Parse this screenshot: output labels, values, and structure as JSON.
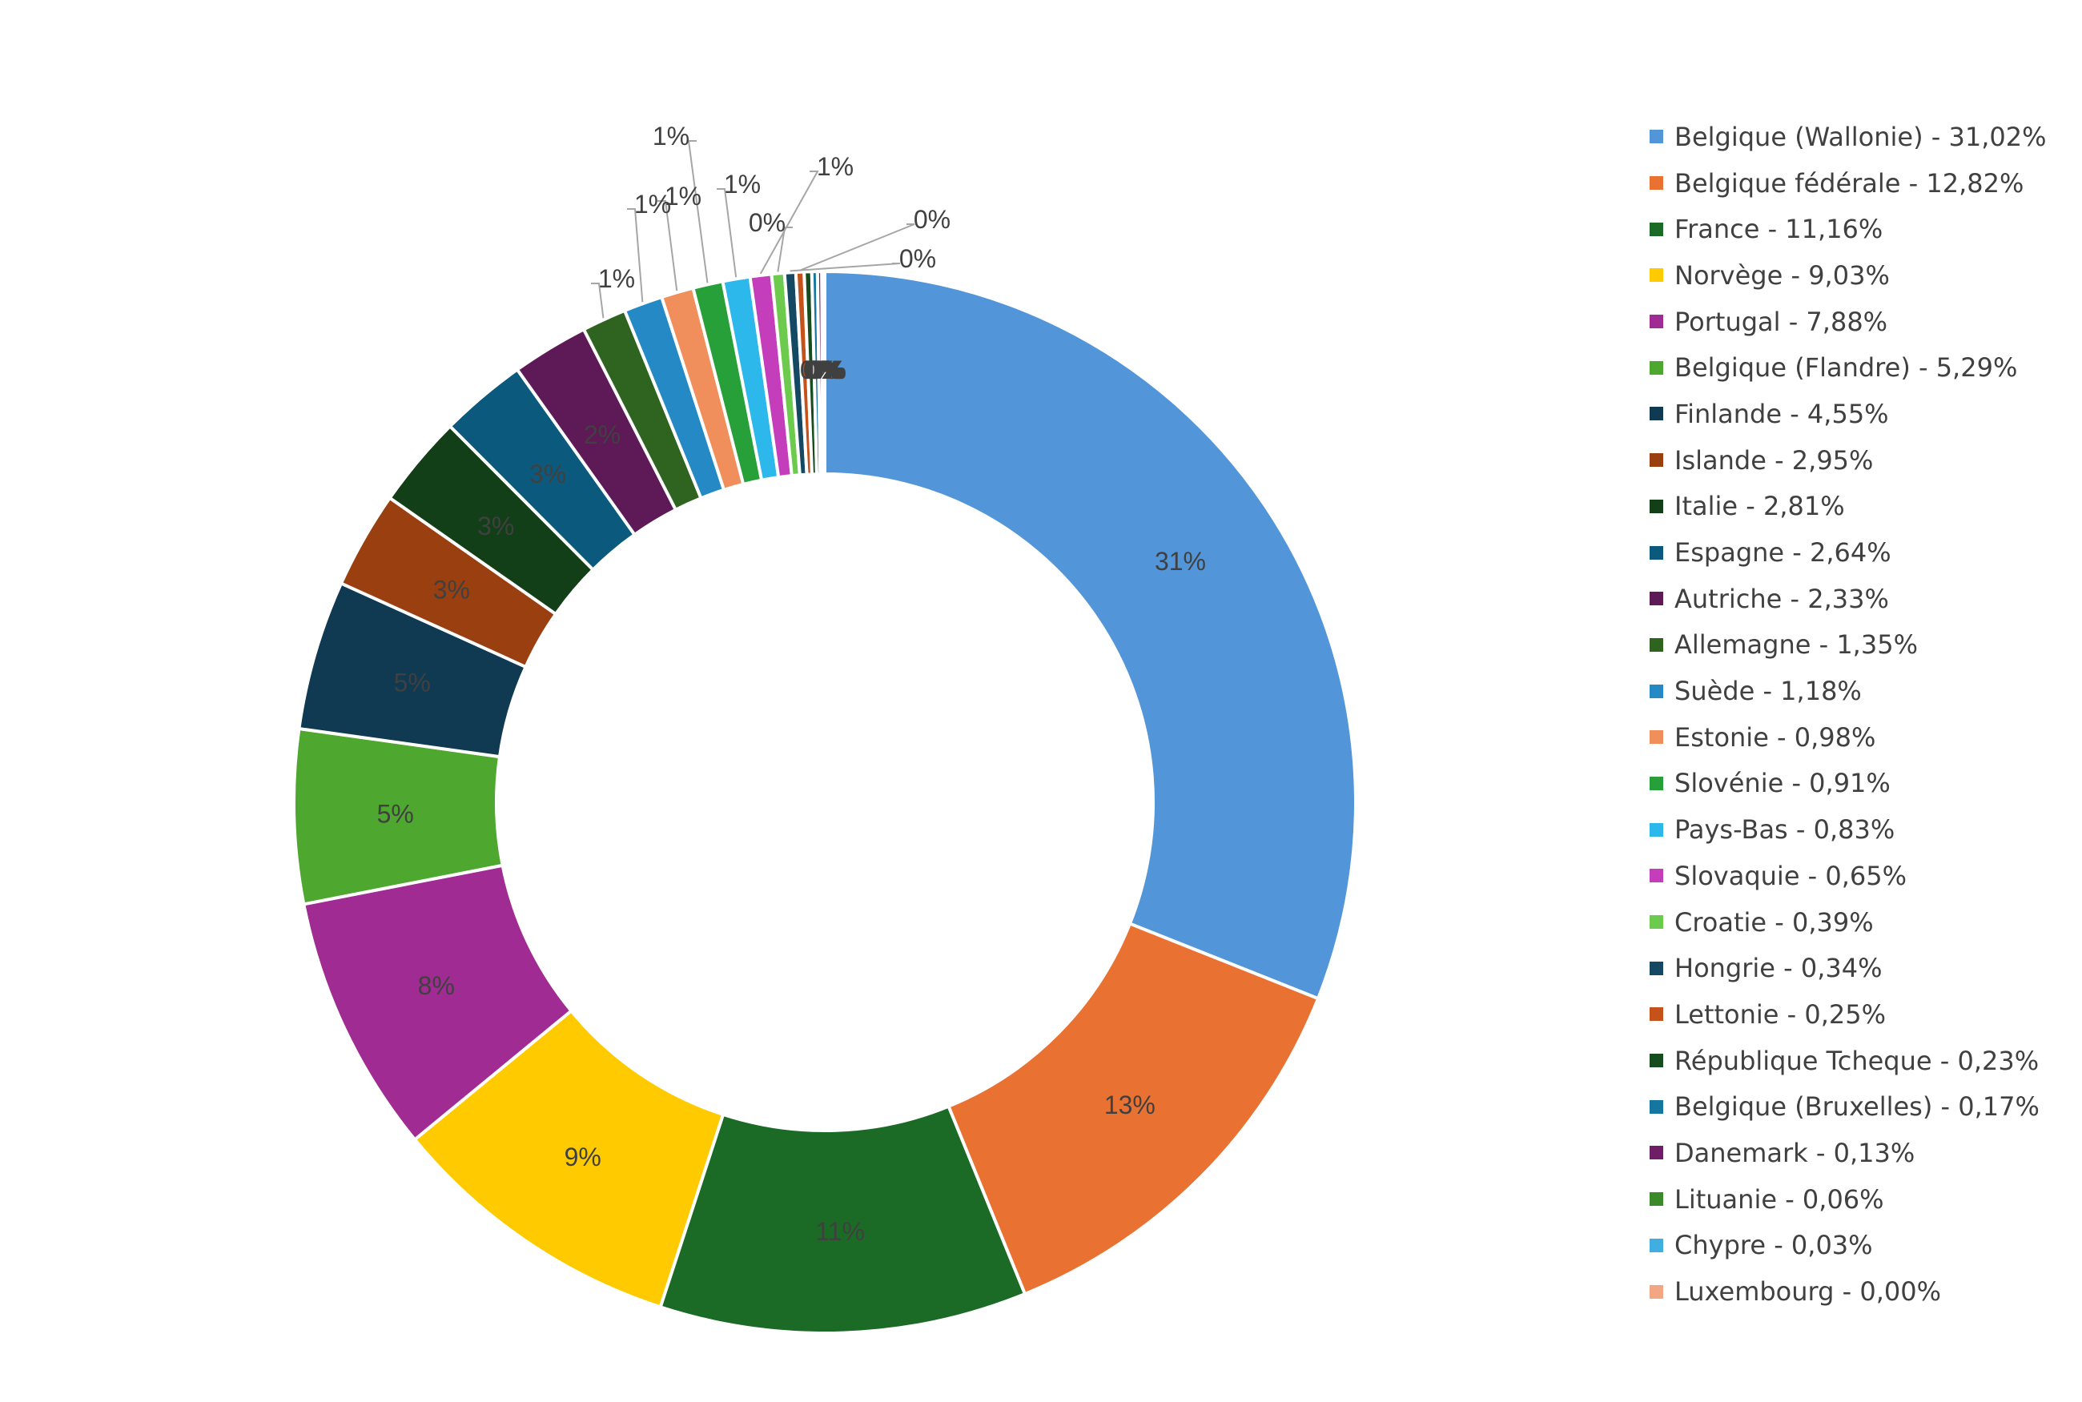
{
  "chart_data": {
    "type": "pie",
    "variant": "doughnut",
    "title": "",
    "legend_position": "right",
    "data_label_color": "#404040",
    "series": [
      {
        "name": "Belgique (Wallonie)",
        "value": 31.02,
        "legend_label": "Belgique (Wallonie) - 31,02%",
        "data_label": "31%",
        "color": "#5296D9"
      },
      {
        "name": "Belgique fédérale",
        "value": 12.82,
        "legend_label": "Belgique fédérale - 12,82%",
        "data_label": "13%",
        "color": "#E97132"
      },
      {
        "name": "France",
        "value": 11.16,
        "legend_label": "France - 11,16%",
        "data_label": "11%",
        "color": "#1B6B26"
      },
      {
        "name": "Norvège",
        "value": 9.03,
        "legend_label": "Norvège - 9,03%",
        "data_label": "9%",
        "color": "#FFCB00"
      },
      {
        "name": "Portugal",
        "value": 7.88,
        "legend_label": "Portugal - 7,88%",
        "data_label": "8%",
        "color": "#A02B93"
      },
      {
        "name": "Belgique (Flandre)",
        "value": 5.29,
        "legend_label": "Belgique (Flandre) - 5,29%",
        "data_label": "5%",
        "color": "#4EA72E"
      },
      {
        "name": "Finlande",
        "value": 4.55,
        "legend_label": "Finlande - 4,55%",
        "data_label": "5%",
        "color": "#0F3A51"
      },
      {
        "name": "Islande",
        "value": 2.95,
        "legend_label": "Islande - 2,95%",
        "data_label": "3%",
        "color": "#9A3F10"
      },
      {
        "name": "Italie",
        "value": 2.81,
        "legend_label": "Italie - 2,81%",
        "data_label": "3%",
        "color": "#123F17"
      },
      {
        "name": "Espagne",
        "value": 2.64,
        "legend_label": "Espagne - 2,64%",
        "data_label": "3%",
        "color": "#0B5A7E"
      },
      {
        "name": "Autriche",
        "value": 2.33,
        "legend_label": "Autriche - 2,33%",
        "data_label": "2%",
        "color": "#5E1A56"
      },
      {
        "name": "Allemagne",
        "value": 1.35,
        "legend_label": "Allemagne - 1,35%",
        "data_label": "1%",
        "color": "#2F6420"
      },
      {
        "name": "Suède",
        "value": 1.18,
        "legend_label": "Suède - 1,18%",
        "data_label": "1%",
        "color": "#2489C4"
      },
      {
        "name": "Estonie",
        "value": 0.98,
        "legend_label": "Estonie - 0,98%",
        "data_label": "1%",
        "color": "#F08E5C"
      },
      {
        "name": "Slovénie",
        "value": 0.91,
        "legend_label": "Slovénie - 0,91%",
        "data_label": "1%",
        "color": "#27A03A"
      },
      {
        "name": "Pays-Bas",
        "value": 0.83,
        "legend_label": "Pays-Bas - 0,83%",
        "data_label": "1%",
        "color": "#2DB8EC"
      },
      {
        "name": "Slovaquie",
        "value": 0.65,
        "legend_label": "Slovaquie - 0,65%",
        "data_label": "1%",
        "color": "#C43DBA"
      },
      {
        "name": "Croatie",
        "value": 0.39,
        "legend_label": "Croatie - 0,39%",
        "data_label": "0%",
        "color": "#6CCB4D"
      },
      {
        "name": "Hongrie",
        "value": 0.34,
        "legend_label": "Hongrie - 0,34%",
        "data_label": "0%",
        "color": "#154862"
      },
      {
        "name": "Lettonie",
        "value": 0.25,
        "legend_label": "Lettonie - 0,25%",
        "data_label": "0%",
        "color": "#C4521A"
      },
      {
        "name": "République Tcheque",
        "value": 0.23,
        "legend_label": "République Tcheque - 0,23%",
        "data_label": "0%",
        "color": "#174D1E"
      },
      {
        "name": "Belgique (Bruxelles)",
        "value": 0.17,
        "legend_label": "Belgique (Bruxelles) - 0,17%",
        "data_label": "0%",
        "color": "#15779F"
      },
      {
        "name": "Danemark",
        "value": 0.13,
        "legend_label": "Danemark - 0,13%",
        "data_label": "0%",
        "color": "#6E1E66"
      },
      {
        "name": "Lituanie",
        "value": 0.06,
        "legend_label": "Lituanie - 0,06%",
        "data_label": "0%",
        "color": "#3A8A28"
      },
      {
        "name": "Chypre",
        "value": 0.03,
        "legend_label": "Chypre - 0,03%",
        "data_label": "0%",
        "color": "#3FAEE0"
      },
      {
        "name": "Luxembourg",
        "value": 0.0,
        "legend_label": "Luxembourg - 0,00%",
        "data_label": "0%",
        "color": "#F3A683"
      }
    ]
  }
}
